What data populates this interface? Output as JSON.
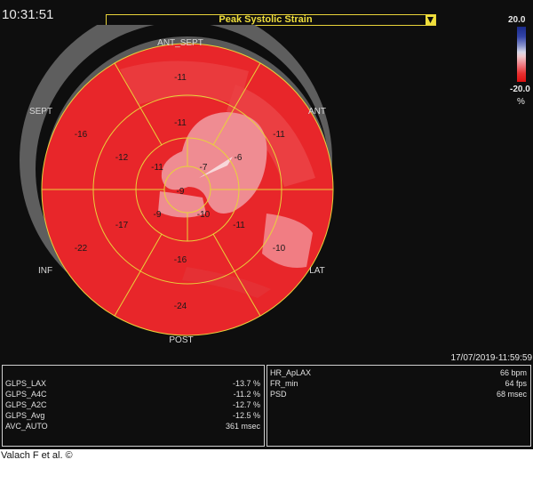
{
  "clock": "10:31:51",
  "mode_select": {
    "value": "Peak Systolic Strain"
  },
  "colorscale": {
    "max": "20.0",
    "min": "-20.0",
    "unit": "%"
  },
  "wall_labels": {
    "ant_sept": "ANT_SEPT",
    "ant": "ANT",
    "lat": "LAT",
    "post": "POST",
    "inf": "INF",
    "sept": "SEPT"
  },
  "segments": {
    "basal": {
      "ant_sept": "-11",
      "ant": "-11",
      "lat": "-10",
      "post": "-24",
      "inf": "-22",
      "sept": "-16"
    },
    "mid": {
      "ant_sept": "-11",
      "ant": "-6",
      "lat": "-11",
      "post": "-16",
      "inf": "-17",
      "sept": "-12"
    },
    "apical": {
      "ant_sept": "-11",
      "ant": "-7",
      "lat": "-10",
      "inf": "-9"
    },
    "apex": "-9"
  },
  "timestamp": "17/07/2019-11:59:59",
  "left_panel": [
    {
      "key": "GLPS_LAX",
      "value": "-13.7 %"
    },
    {
      "key": "GLPS_A4C",
      "value": "-11.2 %"
    },
    {
      "key": "GLPS_A2C",
      "value": "-12.7 %"
    },
    {
      "key": "GLPS_Avg",
      "value": "-12.5 %"
    },
    {
      "key": "AVC_AUTO",
      "value": "361 msec"
    }
  ],
  "right_panel": [
    {
      "key": "HR_ApLAX",
      "value": "66 bpm"
    },
    {
      "key": "FR_min",
      "value": "64 fps"
    },
    {
      "key": "PSD",
      "value": "68 msec"
    }
  ],
  "caption": "Valach F et al. ©",
  "colors": {
    "bull_red": "#e8262a",
    "bull_light": "#ef8c92",
    "line_yellow": "#e8d33a",
    "ring_gray": "#606060"
  }
}
